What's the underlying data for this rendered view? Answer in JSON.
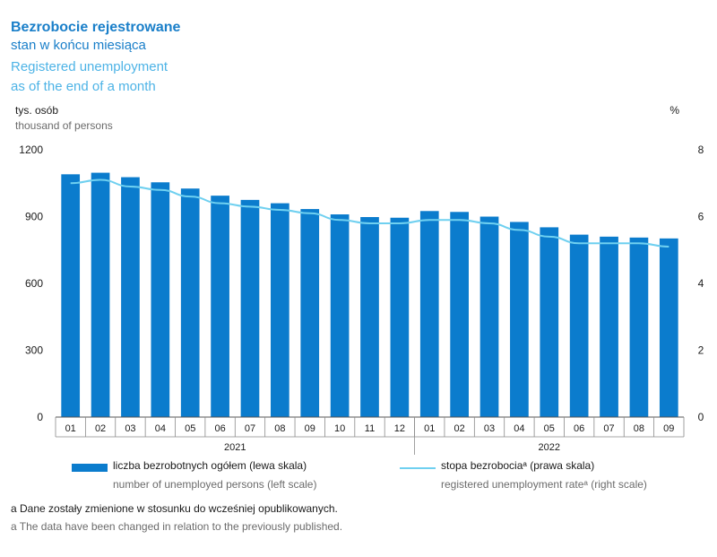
{
  "title": {
    "pl_main": "Bezrobocie rejestrowane",
    "pl_sub": "stan w końcu miesiąca",
    "en_main": "Registered unemployment",
    "en_sub": "as of the end of a month"
  },
  "units": {
    "left_pl": "tys. osób",
    "left_en": "thousand of persons",
    "right": "%"
  },
  "legend": {
    "bars_pl": "liczba bezrobotnych ogółem (lewa skala)",
    "bars_en": "number of unemployed persons (left scale)",
    "line_pl": "stopa bezrobociaᵃ (prawa skala)",
    "line_en": "registered unemployment rateᵃ (right scale)"
  },
  "notes": {
    "pl": "a Dane zostały zmienione w stosunku do wcześniej opublikowanych.",
    "en": "a The data have been changed in relation to the previously published."
  },
  "colors": {
    "bars": "#0b7ccd",
    "line": "#6fd0f0",
    "title_dark": "#1a7fc9",
    "title_light": "#4db3e6",
    "axis": "#555555"
  },
  "chart_data": {
    "type": "bar",
    "categories": [
      "01",
      "02",
      "03",
      "04",
      "05",
      "06",
      "07",
      "08",
      "09",
      "10",
      "11",
      "12",
      "01",
      "02",
      "03",
      "04",
      "05",
      "06",
      "07",
      "08",
      "09"
    ],
    "year_groups": [
      {
        "label": "2021",
        "count": 12
      },
      {
        "label": "2022",
        "count": 9
      }
    ],
    "series": [
      {
        "name": "liczba bezrobotnych ogółem (lewa skala)",
        "axis": "left",
        "kind": "bar",
        "values": [
          1090,
          1097,
          1077,
          1054,
          1026,
          994,
          975,
          960,
          934,
          910,
          898,
          895,
          925,
          921,
          900,
          876,
          852,
          819,
          810,
          806,
          802
        ]
      },
      {
        "name": "stopa bezrobociaᵃ (prawa skala)",
        "axis": "right",
        "kind": "line",
        "values": [
          7.0,
          7.1,
          6.9,
          6.8,
          6.6,
          6.4,
          6.3,
          6.2,
          6.1,
          5.9,
          5.8,
          5.8,
          5.9,
          5.9,
          5.8,
          5.6,
          5.4,
          5.2,
          5.2,
          5.2,
          5.1
        ]
      }
    ],
    "y_left": {
      "min": 0,
      "max": 1200,
      "ticks": [
        0,
        300,
        600,
        900,
        1200
      ]
    },
    "y_right": {
      "min": 0,
      "max": 8,
      "ticks": [
        0,
        2,
        4,
        6,
        8
      ]
    },
    "grid": false,
    "legend_position": "bottom"
  }
}
